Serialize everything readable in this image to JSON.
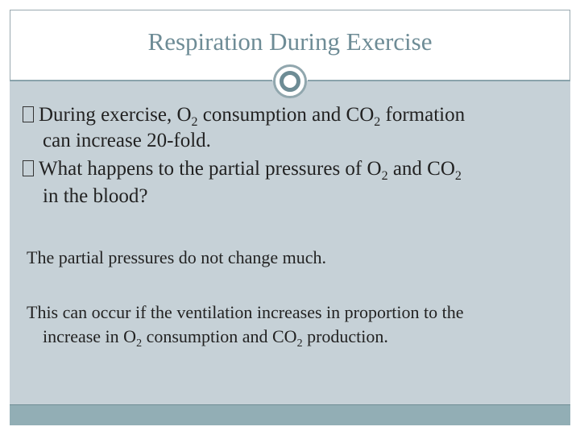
{
  "slide": {
    "title": "Respiration During Exercise",
    "bullets": [
      {
        "line1_pre": "During exercise, O",
        "line1_sub1": "2",
        "line1_mid": " consumption and CO",
        "line1_sub2": "2",
        "line1_post": " formation",
        "line2": "can increase 20-fold."
      },
      {
        "line1_pre": "What happens to the partial pressures of O",
        "line1_sub1": "2",
        "line1_mid": " and CO",
        "line1_sub2": "2",
        "line2": "in the blood?"
      }
    ],
    "paragraph1": "The partial pressures do not change much.",
    "paragraph2": {
      "line1": "This can occur if the ventilation increases in proportion to the",
      "line2_pre": "increase in O",
      "line2_sub1": "2",
      "line2_mid": " consumption and CO",
      "line2_sub2": "2",
      "line2_post": " production."
    },
    "colors": {
      "title": "#6e8c96",
      "content_panel": "#c6d1d7",
      "bottom_bar": "#92aeb5",
      "ornament": "#6d8c95"
    }
  }
}
